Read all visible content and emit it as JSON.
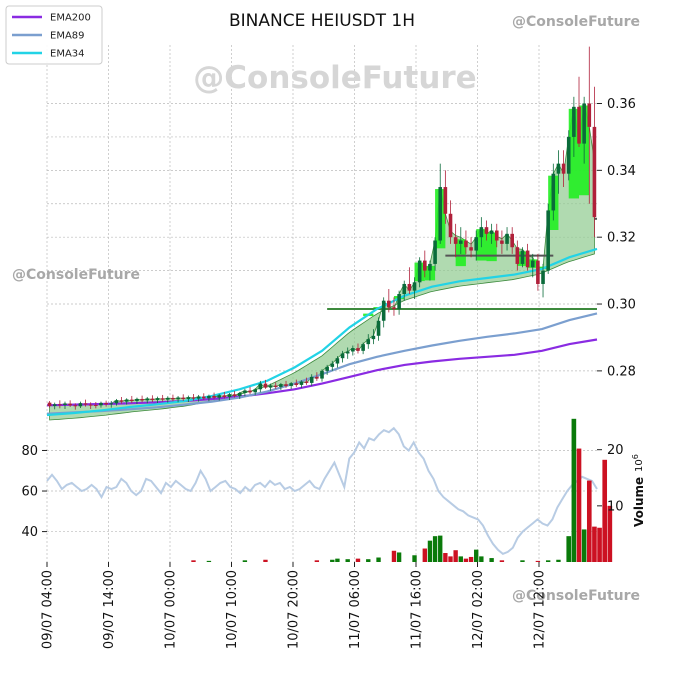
{
  "chart_data": {
    "type": "candlestick",
    "title": "BINANCE HEIUSDT 1H",
    "watermark": "@ConsoleFuture",
    "x_tick_labels": [
      "09/07 04:00",
      "09/07 14:00",
      "10/07 00:00",
      "10/07 10:00",
      "10/07 20:00",
      "11/07 06:00",
      "11/07 16:00",
      "12/07 02:00",
      "12/07 12:00"
    ],
    "price_axis": {
      "ticks": [
        0.28,
        0.3,
        0.32,
        0.34,
        0.36
      ],
      "range": [
        0.2665,
        0.3775
      ]
    },
    "oscillator_axis": {
      "ticks": [
        40,
        60,
        80
      ],
      "range": [
        25,
        97
      ]
    },
    "volume_axis": {
      "label": "Volume",
      "exponent": "6",
      "ticks": [
        10,
        20
      ],
      "tick_labels": [
        "10",
        "20"
      ],
      "range": [
        0,
        26
      ]
    },
    "legend": [
      {
        "label": "EMA200",
        "color": "#8a2be2"
      },
      {
        "label": "EMA89",
        "color": "#7b9fcf"
      },
      {
        "label": "EMA34",
        "color": "#22d3e6"
      }
    ],
    "colors": {
      "up": "#0a6b3a",
      "down": "#b0203a",
      "vol_up": "#0a7a0a",
      "vol_down": "#cc1122",
      "cloud": "#8fca8f",
      "ribbon": "#22ee22",
      "oscillator": "#b8cce4"
    },
    "candles": [
      [
        0.2705,
        0.271,
        0.269,
        0.2695
      ],
      [
        0.2695,
        0.2705,
        0.2685,
        0.27
      ],
      [
        0.27,
        0.2712,
        0.2688,
        0.2698
      ],
      [
        0.2698,
        0.2708,
        0.2686,
        0.2702
      ],
      [
        0.2702,
        0.2712,
        0.2692,
        0.2697
      ],
      [
        0.2697,
        0.2703,
        0.2684,
        0.2694
      ],
      [
        0.2694,
        0.2708,
        0.2689,
        0.2703
      ],
      [
        0.2703,
        0.2714,
        0.2693,
        0.2699
      ],
      [
        0.2699,
        0.2706,
        0.2686,
        0.2698
      ],
      [
        0.2698,
        0.2707,
        0.2688,
        0.2697
      ],
      [
        0.2697,
        0.2708,
        0.269,
        0.2704
      ],
      [
        0.2704,
        0.2711,
        0.2693,
        0.27
      ],
      [
        0.27,
        0.271,
        0.269,
        0.2703
      ],
      [
        0.2703,
        0.2716,
        0.2696,
        0.2712
      ],
      [
        0.2712,
        0.2722,
        0.2702,
        0.2708
      ],
      [
        0.2708,
        0.2718,
        0.2699,
        0.2714
      ],
      [
        0.2714,
        0.2725,
        0.2704,
        0.271
      ],
      [
        0.271,
        0.272,
        0.2701,
        0.2716
      ],
      [
        0.2716,
        0.2726,
        0.2706,
        0.2712
      ],
      [
        0.2712,
        0.2722,
        0.2703,
        0.2717
      ],
      [
        0.2717,
        0.2727,
        0.2707,
        0.2713
      ],
      [
        0.2713,
        0.2723,
        0.2704,
        0.2718
      ],
      [
        0.2718,
        0.2728,
        0.2708,
        0.2714
      ],
      [
        0.2714,
        0.2724,
        0.2705,
        0.2719
      ],
      [
        0.2719,
        0.2729,
        0.2709,
        0.2715
      ],
      [
        0.2715,
        0.2725,
        0.2706,
        0.272
      ],
      [
        0.272,
        0.273,
        0.271,
        0.2716
      ],
      [
        0.2716,
        0.2726,
        0.2707,
        0.2721
      ],
      [
        0.2721,
        0.2731,
        0.2711,
        0.2717
      ],
      [
        0.2717,
        0.2728,
        0.2708,
        0.2723
      ],
      [
        0.2723,
        0.2733,
        0.2713,
        0.2718
      ],
      [
        0.2718,
        0.2729,
        0.2709,
        0.2725
      ],
      [
        0.2725,
        0.2735,
        0.2715,
        0.272
      ],
      [
        0.272,
        0.2731,
        0.2711,
        0.2727
      ],
      [
        0.2727,
        0.2737,
        0.2717,
        0.2722
      ],
      [
        0.2722,
        0.2734,
        0.2713,
        0.273
      ],
      [
        0.273,
        0.274,
        0.272,
        0.2725
      ],
      [
        0.2725,
        0.2737,
        0.2716,
        0.2734
      ],
      [
        0.2734,
        0.2746,
        0.2724,
        0.2741
      ],
      [
        0.2741,
        0.2752,
        0.2731,
        0.2736
      ],
      [
        0.2736,
        0.2748,
        0.2727,
        0.2745
      ],
      [
        0.2745,
        0.277,
        0.2736,
        0.2762
      ],
      [
        0.2762,
        0.2773,
        0.2746,
        0.275
      ],
      [
        0.275,
        0.2762,
        0.274,
        0.2756
      ],
      [
        0.2756,
        0.2766,
        0.2746,
        0.2752
      ],
      [
        0.2752,
        0.2764,
        0.2743,
        0.276
      ],
      [
        0.276,
        0.277,
        0.2749,
        0.2755
      ],
      [
        0.2755,
        0.2767,
        0.2746,
        0.2763
      ],
      [
        0.2763,
        0.2774,
        0.2752,
        0.2758
      ],
      [
        0.2758,
        0.2772,
        0.2749,
        0.2768
      ],
      [
        0.2768,
        0.278,
        0.2758,
        0.2764
      ],
      [
        0.2764,
        0.279,
        0.2755,
        0.2782
      ],
      [
        0.2782,
        0.2796,
        0.277,
        0.2777
      ],
      [
        0.2777,
        0.2805,
        0.2768,
        0.28
      ],
      [
        0.28,
        0.2818,
        0.2788,
        0.2812
      ],
      [
        0.2812,
        0.283,
        0.28,
        0.2822
      ],
      [
        0.2822,
        0.2844,
        0.281,
        0.2838
      ],
      [
        0.2838,
        0.286,
        0.2825,
        0.2852
      ],
      [
        0.2852,
        0.287,
        0.2836,
        0.2858
      ],
      [
        0.2858,
        0.2876,
        0.2846,
        0.2868
      ],
      [
        0.2868,
        0.2882,
        0.2852,
        0.286
      ],
      [
        0.286,
        0.2885,
        0.285,
        0.288
      ],
      [
        0.288,
        0.291,
        0.2866,
        0.2895
      ],
      [
        0.2895,
        0.2925,
        0.288,
        0.2905
      ],
      [
        0.2905,
        0.296,
        0.289,
        0.295
      ],
      [
        0.295,
        0.302,
        0.293,
        0.301
      ],
      [
        0.301,
        0.3045,
        0.2975,
        0.299
      ],
      [
        0.299,
        0.302,
        0.2965,
        0.2985
      ],
      [
        0.2985,
        0.304,
        0.2968,
        0.303
      ],
      [
        0.303,
        0.307,
        0.301,
        0.306
      ],
      [
        0.306,
        0.311,
        0.303,
        0.304
      ],
      [
        0.304,
        0.308,
        0.3015,
        0.3065
      ],
      [
        0.3065,
        0.314,
        0.305,
        0.313
      ],
      [
        0.313,
        0.316,
        0.308,
        0.31
      ],
      [
        0.31,
        0.313,
        0.307,
        0.312
      ],
      [
        0.312,
        0.32,
        0.31,
        0.319
      ],
      [
        0.319,
        0.342,
        0.318,
        0.335
      ],
      [
        0.335,
        0.34,
        0.324,
        0.327
      ],
      [
        0.327,
        0.331,
        0.318,
        0.32
      ],
      [
        0.32,
        0.324,
        0.314,
        0.318
      ],
      [
        0.318,
        0.323,
        0.315,
        0.319
      ],
      [
        0.319,
        0.322,
        0.315,
        0.317
      ],
      [
        0.317,
        0.32,
        0.314,
        0.316
      ],
      [
        0.316,
        0.322,
        0.313,
        0.32
      ],
      [
        0.32,
        0.326,
        0.317,
        0.323
      ],
      [
        0.323,
        0.325,
        0.319,
        0.321
      ],
      [
        0.321,
        0.324,
        0.318,
        0.322
      ],
      [
        0.322,
        0.324,
        0.317,
        0.319
      ],
      [
        0.319,
        0.322,
        0.315,
        0.318
      ],
      [
        0.318,
        0.323,
        0.316,
        0.321
      ],
      [
        0.321,
        0.323,
        0.315,
        0.317
      ],
      [
        0.317,
        0.319,
        0.31,
        0.312
      ],
      [
        0.312,
        0.317,
        0.311,
        0.316
      ],
      [
        0.316,
        0.318,
        0.31,
        0.311
      ],
      [
        0.311,
        0.315,
        0.308,
        0.313
      ],
      [
        0.313,
        0.315,
        0.304,
        0.306
      ],
      [
        0.306,
        0.312,
        0.302,
        0.31
      ],
      [
        0.31,
        0.33,
        0.309,
        0.328
      ],
      [
        0.328,
        0.342,
        0.325,
        0.339
      ],
      [
        0.339,
        0.346,
        0.333,
        0.342
      ],
      [
        0.342,
        0.346,
        0.335,
        0.339
      ],
      [
        0.339,
        0.352,
        0.337,
        0.35
      ],
      [
        0.35,
        0.362,
        0.344,
        0.359
      ],
      [
        0.359,
        0.368,
        0.347,
        0.348
      ],
      [
        0.348,
        0.362,
        0.342,
        0.36
      ],
      [
        0.36,
        0.377,
        0.33,
        0.353
      ],
      [
        0.353,
        0.365,
        0.32,
        0.326
      ]
    ],
    "ema200": [
      0.2697,
      0.2699,
      0.2701,
      0.2703,
      0.2706,
      0.271,
      0.2716,
      0.2723,
      0.2733,
      0.2745,
      0.2762,
      0.2782,
      0.2802,
      0.2818,
      0.2828,
      0.2836,
      0.2842,
      0.2848,
      0.286,
      0.288,
      0.2894
    ],
    "ema89": [
      0.2672,
      0.2676,
      0.268,
      0.2685,
      0.2691,
      0.2699,
      0.2708,
      0.272,
      0.2738,
      0.2762,
      0.279,
      0.282,
      0.2842,
      0.286,
      0.2876,
      0.289,
      0.2902,
      0.2912,
      0.2925,
      0.2952,
      0.2972
    ],
    "ema34": [
      0.2668,
      0.2674,
      0.2682,
      0.2692,
      0.27,
      0.271,
      0.2725,
      0.2745,
      0.277,
      0.281,
      0.286,
      0.293,
      0.2985,
      0.3025,
      0.3052,
      0.3068,
      0.3078,
      0.3088,
      0.3105,
      0.314,
      0.3165
    ],
    "oscillator": [
      65,
      68,
      65,
      61,
      63,
      64,
      62,
      60,
      61,
      63,
      61,
      57,
      62,
      61,
      62,
      66,
      64,
      60,
      58,
      60,
      66,
      65,
      62,
      59,
      64,
      62,
      65,
      63,
      61,
      60,
      64,
      70,
      66,
      60,
      62,
      64,
      65,
      62,
      61,
      59,
      62,
      60,
      63,
      64,
      62,
      65,
      63,
      64,
      61,
      62,
      60,
      61,
      63,
      65,
      62,
      61,
      66,
      70,
      74,
      68,
      62,
      76,
      79,
      84,
      81,
      86,
      85,
      88,
      90,
      89,
      91,
      88,
      82,
      80,
      84,
      79,
      76,
      70,
      66,
      60,
      57,
      55,
      53,
      51,
      50,
      48,
      47,
      46,
      43,
      38,
      34,
      31,
      29,
      30,
      32,
      37,
      40,
      42,
      44,
      46,
      44,
      43,
      46,
      52,
      56,
      60,
      63,
      65,
      67,
      66,
      65,
      61
    ]
  }
}
